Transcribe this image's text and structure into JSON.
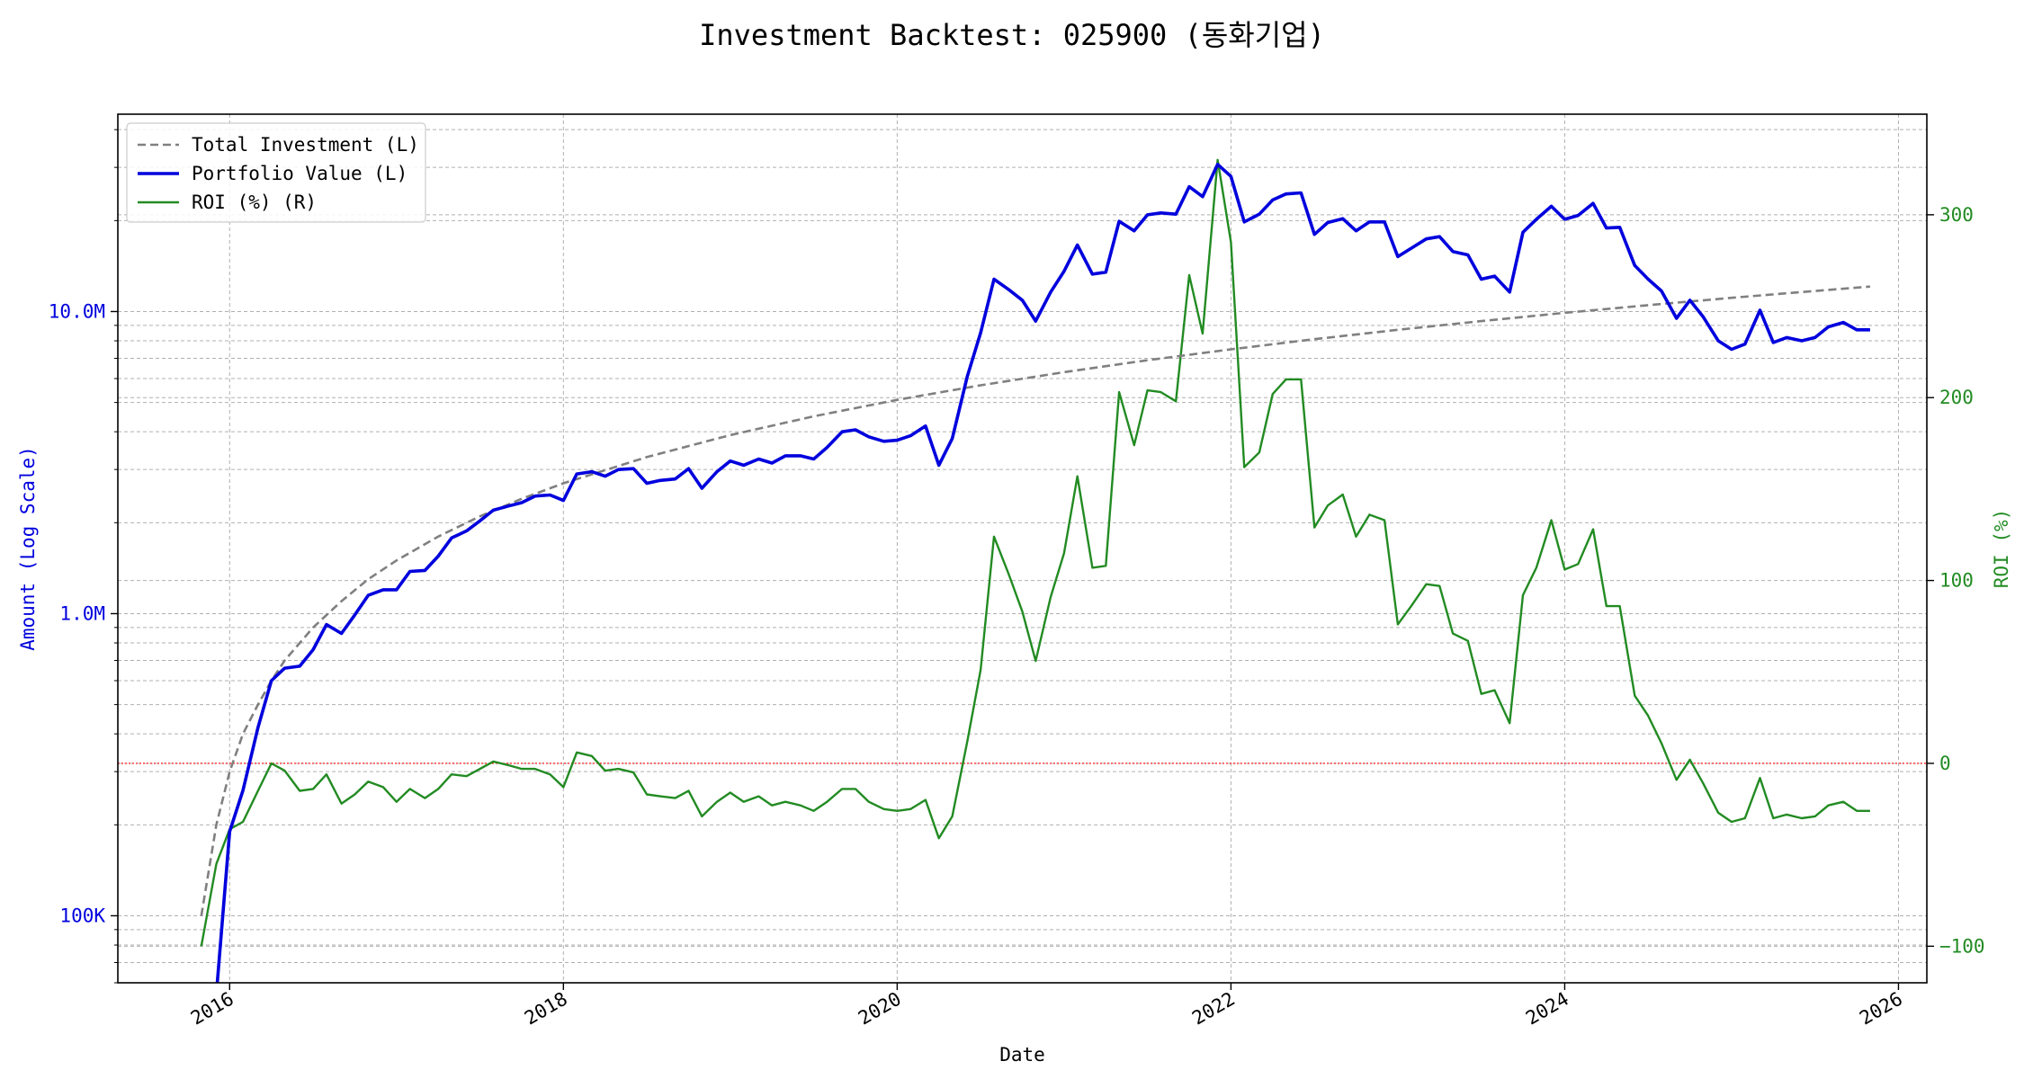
{
  "chart_data": {
    "type": "line",
    "title": "Investment Backtest: 025900 (동화기업)",
    "xlabel": "Date",
    "ylabel_left": "Amount (Log Scale)",
    "ylabel_right": "ROI (%)",
    "left_axis": {
      "scale": "log",
      "ylim": [
        60000,
        45000000
      ],
      "ticks": [
        {
          "value": 100000,
          "label": "100K"
        },
        {
          "value": 1000000,
          "label": "1.0M"
        },
        {
          "value": 10000000,
          "label": "10.0M"
        }
      ]
    },
    "right_axis": {
      "scale": "linear",
      "ylim": [
        -120,
        355
      ],
      "ticks": [
        {
          "value": -100,
          "label": "−100"
        },
        {
          "value": 0,
          "label": "0"
        },
        {
          "value": 100,
          "label": "100"
        },
        {
          "value": 200,
          "label": "200"
        },
        {
          "value": 300,
          "label": "300"
        }
      ]
    },
    "x_axis": {
      "range": [
        2015.33,
        2026.17
      ],
      "ticks": [
        {
          "value": 2016,
          "label": "2016"
        },
        {
          "value": 2018,
          "label": "2018"
        },
        {
          "value": 2020,
          "label": "2020"
        },
        {
          "value": 2022,
          "label": "2022"
        },
        {
          "value": 2024,
          "label": "2024"
        },
        {
          "value": 2026,
          "label": "2026"
        }
      ]
    },
    "grid": true,
    "legend_position": "top-left",
    "reference_line": {
      "axis": "right",
      "value": 0,
      "color": "#ff0000",
      "style": "dotted"
    },
    "series": [
      {
        "name": "Total Investment (L)",
        "axis": "left",
        "color": "#808080",
        "style": "dashed",
        "x": [
          2015.83,
          2015.92,
          2016.0,
          2016.08,
          2016.17,
          2016.25,
          2016.33,
          2016.5,
          2016.67,
          2016.83,
          2017.0,
          2017.25,
          2017.5,
          2017.75,
          2018.0,
          2018.5,
          2019.0,
          2019.5,
          2020.0,
          2020.5,
          2021.0,
          2021.5,
          2022.0,
          2022.5,
          2023.0,
          2023.5,
          2024.0,
          2024.5,
          2025.0,
          2025.5,
          2025.83
        ],
        "values": [
          100000,
          200000,
          300000,
          400000,
          500000,
          600000,
          700000,
          900000,
          1100000,
          1300000,
          1500000,
          1800000,
          2100000,
          2400000,
          2700000,
          3300000,
          3900000,
          4500000,
          5100000,
          5700000,
          6300000,
          6900000,
          7500000,
          8100000,
          8700000,
          9300000,
          9900000,
          10500000,
          11100000,
          11700000,
          12100000
        ]
      },
      {
        "name": "Portfolio Value (L)",
        "axis": "left",
        "color": "#0000dd",
        "style": "solid",
        "x": [
          2015.92,
          2016.0,
          2016.08,
          2016.17,
          2016.25,
          2016.33,
          2016.42,
          2016.5,
          2016.58,
          2016.67,
          2016.75,
          2016.83,
          2016.92,
          2017.0,
          2017.08,
          2017.17,
          2017.25,
          2017.33,
          2017.42,
          2017.5,
          2017.58,
          2017.67,
          2017.75,
          2017.83,
          2017.92,
          2018.0,
          2018.08,
          2018.17,
          2018.25,
          2018.33,
          2018.42,
          2018.5,
          2018.58,
          2018.67,
          2018.75,
          2018.83,
          2018.92,
          2019.0,
          2019.08,
          2019.17,
          2019.25,
          2019.33,
          2019.42,
          2019.5,
          2019.58,
          2019.67,
          2019.75,
          2019.83,
          2019.92,
          2020.0,
          2020.08,
          2020.17,
          2020.25,
          2020.33,
          2020.42,
          2020.5,
          2020.58,
          2020.67,
          2020.75,
          2020.83,
          2020.92,
          2021.0,
          2021.08,
          2021.17,
          2021.25,
          2021.33,
          2021.42,
          2021.5,
          2021.58,
          2021.67,
          2021.75,
          2021.83,
          2021.92,
          2022.0,
          2022.08,
          2022.17,
          2022.25,
          2022.33,
          2022.42,
          2022.5,
          2022.58,
          2022.67,
          2022.75,
          2022.83,
          2022.92,
          2023.0,
          2023.08,
          2023.17,
          2023.25,
          2023.33,
          2023.42,
          2023.5,
          2023.58,
          2023.67,
          2023.75,
          2023.83,
          2023.92,
          2024.0,
          2024.08,
          2024.17,
          2024.25,
          2024.33,
          2024.42,
          2024.5,
          2024.58,
          2024.67,
          2024.75,
          2024.83,
          2024.92,
          2025.0,
          2025.08,
          2025.17,
          2025.25,
          2025.33,
          2025.42,
          2025.5,
          2025.58,
          2025.67,
          2025.75,
          2025.83
        ],
        "values": [
          55000,
          190000,
          260000,
          420000,
          600000,
          660000,
          670000,
          760000,
          920000,
          860000,
          990000,
          1150000,
          1200000,
          1200000,
          1380000,
          1390000,
          1550000,
          1780000,
          1880000,
          2030000,
          2200000,
          2270000,
          2330000,
          2450000,
          2470000,
          2370000,
          2900000,
          2950000,
          2850000,
          3000000,
          3020000,
          2700000,
          2760000,
          2790000,
          3020000,
          2600000,
          2950000,
          3200000,
          3100000,
          3250000,
          3150000,
          3330000,
          3330000,
          3250000,
          3550000,
          4000000,
          4060000,
          3850000,
          3720000,
          3750000,
          3880000,
          4180000,
          3100000,
          3800000,
          6100000,
          8500000,
          12800000,
          11800000,
          10900000,
          9300000,
          11600000,
          13600000,
          16600000,
          13300000,
          13500000,
          19900000,
          18500000,
          20900000,
          21200000,
          21000000,
          25900000,
          24000000,
          30700000,
          28000000,
          19800000,
          21000000,
          23400000,
          24500000,
          24700000,
          18000000,
          19700000,
          20300000,
          18500000,
          19800000,
          19800000,
          15200000,
          16200000,
          17400000,
          17700000,
          15800000,
          15400000,
          12800000,
          13100000,
          11600000,
          18300000,
          20200000,
          22300000,
          20200000,
          20800000,
          22800000,
          18900000,
          19000000,
          14200000,
          12800000,
          11700000,
          9500000,
          10900000,
          9600000,
          8000000,
          7500000,
          7800000,
          10100000,
          7900000,
          8200000,
          8000000,
          8200000,
          8900000,
          9200000,
          8700000,
          8700000
        ]
      },
      {
        "name": "ROI (%) (R)",
        "axis": "right",
        "color": "#228b22",
        "style": "solid",
        "x": [
          2015.83,
          2015.92,
          2016.0,
          2016.08,
          2016.17,
          2016.25,
          2016.33,
          2016.42,
          2016.5,
          2016.58,
          2016.67,
          2016.75,
          2016.83,
          2016.92,
          2017.0,
          2017.08,
          2017.17,
          2017.25,
          2017.33,
          2017.42,
          2017.5,
          2017.58,
          2017.67,
          2017.75,
          2017.83,
          2017.92,
          2018.0,
          2018.08,
          2018.17,
          2018.25,
          2018.33,
          2018.42,
          2018.5,
          2018.58,
          2018.67,
          2018.75,
          2018.83,
          2018.92,
          2019.0,
          2019.08,
          2019.17,
          2019.25,
          2019.33,
          2019.42,
          2019.5,
          2019.58,
          2019.67,
          2019.75,
          2019.83,
          2019.92,
          2020.0,
          2020.08,
          2020.17,
          2020.25,
          2020.33,
          2020.42,
          2020.5,
          2020.58,
          2020.67,
          2020.75,
          2020.83,
          2020.92,
          2021.0,
          2021.08,
          2021.17,
          2021.25,
          2021.33,
          2021.42,
          2021.5,
          2021.58,
          2021.67,
          2021.75,
          2021.83,
          2021.92,
          2022.0,
          2022.08,
          2022.17,
          2022.25,
          2022.33,
          2022.42,
          2022.5,
          2022.58,
          2022.67,
          2022.75,
          2022.83,
          2022.92,
          2023.0,
          2023.08,
          2023.17,
          2023.25,
          2023.33,
          2023.42,
          2023.5,
          2023.58,
          2023.67,
          2023.75,
          2023.83,
          2023.92,
          2024.0,
          2024.08,
          2024.17,
          2024.25,
          2024.33,
          2024.42,
          2024.5,
          2024.58,
          2024.67,
          2024.75,
          2024.83,
          2024.92,
          2025.0,
          2025.08,
          2025.17,
          2025.25,
          2025.33,
          2025.42,
          2025.5,
          2025.58,
          2025.67,
          2025.75,
          2025.83
        ],
        "values": [
          -100,
          -55,
          -36,
          -32,
          -15,
          0,
          -4,
          -15,
          -14,
          -6,
          -22,
          -17,
          -10,
          -13,
          -21,
          -14,
          -19,
          -14,
          -6,
          -7,
          -3,
          1,
          -1,
          -3,
          -3,
          -6,
          -13,
          6,
          4,
          -4,
          -3,
          -5,
          -17,
          -18,
          -19,
          -15,
          -29,
          -21,
          -16,
          -21,
          -18,
          -23,
          -21,
          -23,
          -26,
          -21,
          -14,
          -14,
          -21,
          -25,
          -26,
          -25,
          -20,
          -41,
          -29,
          12,
          51,
          124,
          103,
          83,
          56,
          91,
          115,
          157,
          107,
          108,
          203,
          174,
          204,
          203,
          198,
          267,
          235,
          330,
          285,
          162,
          170,
          202,
          210,
          210,
          129,
          141,
          147,
          124,
          136,
          133,
          76,
          86,
          98,
          97,
          71,
          67,
          38,
          40,
          22,
          92,
          107,
          133,
          106,
          109,
          128,
          86,
          86,
          37,
          26,
          11,
          -9,
          2,
          -11,
          -27,
          -32,
          -30,
          -8,
          -30,
          -28,
          -30,
          -29,
          -23,
          -21,
          -26,
          -26
        ]
      }
    ]
  }
}
